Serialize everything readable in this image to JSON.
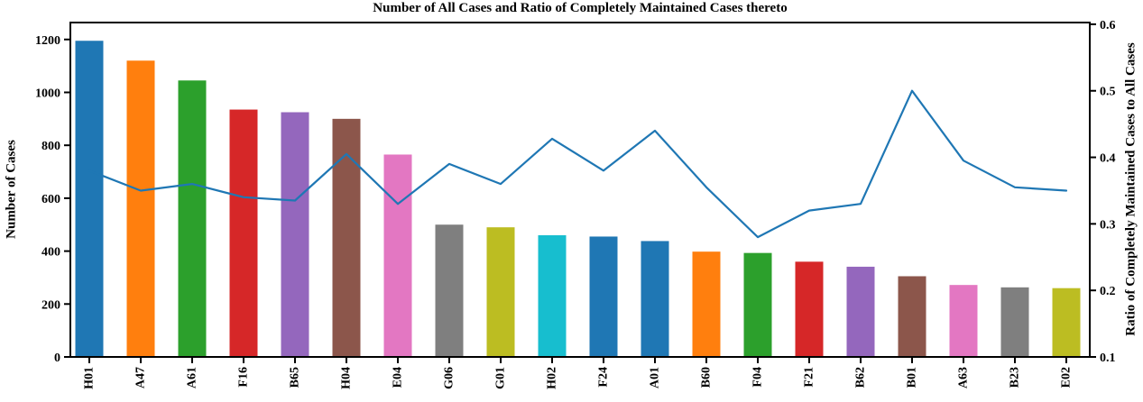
{
  "chart_data": {
    "type": "bar+line",
    "title": "Number of All Cases and Ratio of Completely Maintained Cases thereto",
    "categories": [
      "H01",
      "A47",
      "A61",
      "F16",
      "B65",
      "H04",
      "E04",
      "G06",
      "G01",
      "H02",
      "F24",
      "A01",
      "B60",
      "F04",
      "F21",
      "B62",
      "B01",
      "A63",
      "B23",
      "E02"
    ],
    "bar_series": {
      "name": "Number of All Cases",
      "axis": "left",
      "values": [
        1195,
        1120,
        1045,
        935,
        925,
        900,
        765,
        500,
        490,
        460,
        455,
        438,
        398,
        393,
        360,
        341,
        305,
        272,
        263,
        260
      ],
      "colors": [
        "#1f77b4",
        "#ff7f0e",
        "#2ca02c",
        "#d62728",
        "#9467bd",
        "#8c564b",
        "#e377c2",
        "#7f7f7f",
        "#bcbd22",
        "#17becf",
        "#1f77b4",
        "#1f77b4",
        "#ff7f0e",
        "#2ca02c",
        "#d62728",
        "#9467bd",
        "#8c564b",
        "#e377c2",
        "#7f7f7f",
        "#bcbd22"
      ]
    },
    "line_series": {
      "name": "Ratio of Completely Maintained Cases to All Cases",
      "axis": "right",
      "color": "#1f77b4",
      "values": [
        0.38,
        0.35,
        0.36,
        0.34,
        0.335,
        0.405,
        0.33,
        0.39,
        0.36,
        0.428,
        0.38,
        0.44,
        0.355,
        0.28,
        0.32,
        0.33,
        0.5,
        0.395,
        0.355,
        0.35
      ]
    },
    "left_axis": {
      "label": "Number of Cases",
      "ticks": [
        0,
        200,
        400,
        600,
        800,
        1000,
        1200
      ],
      "range": [
        0,
        1264
      ]
    },
    "right_axis": {
      "label": "Ratio of Completely Maintained Cases to All Cases",
      "ticks": [
        0.1,
        0.2,
        0.3,
        0.4,
        0.5,
        0.6
      ],
      "tick_decimals": 1,
      "range": [
        0.1,
        0.6026
      ]
    },
    "grid": false,
    "legend": "none",
    "axis_color": "#000000"
  }
}
